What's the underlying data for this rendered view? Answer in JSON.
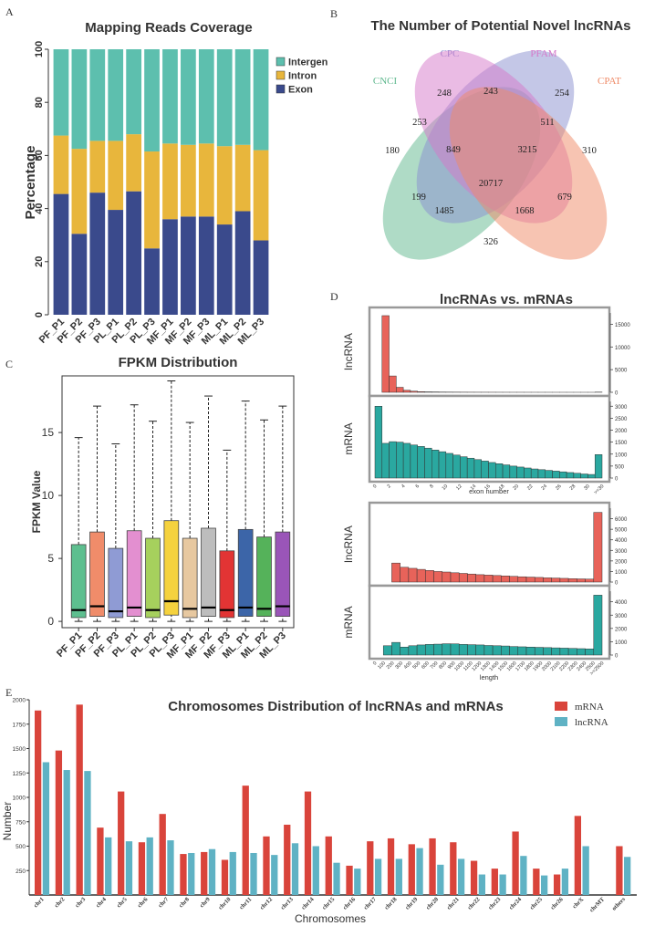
{
  "panel_labels": {
    "a": "A",
    "b": "B",
    "c": "C",
    "d": "D",
    "e": "E"
  },
  "chart_data": [
    {
      "id": "A",
      "type": "bar",
      "stacked": true,
      "title": "Mapping Reads Coverage",
      "ylabel": "Percentage",
      "xlabel": "",
      "ylim": [
        0,
        100
      ],
      "yticks": [
        0,
        20,
        40,
        60,
        80,
        100
      ],
      "categories": [
        "PF_P1",
        "PF_P2",
        "PF_P3",
        "PL_P1",
        "PL_P2",
        "PL_P3",
        "MF_P1",
        "MF_P2",
        "MF_P3",
        "ML_P1",
        "ML_P2",
        "ML_P3"
      ],
      "series": [
        {
          "name": "Exon",
          "color": "#3a4a8c",
          "values": [
            45.5,
            30.5,
            46,
            39.5,
            46.5,
            25,
            36,
            37,
            37,
            34,
            39,
            28
          ]
        },
        {
          "name": "Intron",
          "color": "#e8b63c",
          "values": [
            22,
            32,
            19.5,
            26,
            21.5,
            36.5,
            28.5,
            27,
            27.5,
            29.5,
            25,
            34
          ]
        },
        {
          "name": "Intergenic",
          "color": "#5dbfae",
          "values": [
            32.5,
            37.5,
            34.5,
            34.5,
            32,
            38.5,
            35.5,
            36,
            35.5,
            36.5,
            36,
            38
          ]
        }
      ],
      "legend": [
        "Intergenic",
        "Intron",
        "Exon"
      ],
      "legend_position": "right"
    },
    {
      "id": "B",
      "type": "venn",
      "title": "The Number of Potential Novel lncRNAs",
      "sets": [
        {
          "name": "CNCI",
          "color": "#5fb88e"
        },
        {
          "name": "CPC",
          "color": "#8a8fd0"
        },
        {
          "name": "PFAM",
          "color": "#d677c9"
        },
        {
          "name": "CPAT",
          "color": "#ef8a66"
        }
      ],
      "regions": [
        {
          "sets": [
            "CNCI"
          ],
          "value": 180
        },
        {
          "sets": [
            "CPC"
          ],
          "value": 248
        },
        {
          "sets": [
            "PFAM"
          ],
          "value": 254
        },
        {
          "sets": [
            "CPAT"
          ],
          "value": 310
        },
        {
          "sets": [
            "CNCI",
            "CPC"
          ],
          "value": 253
        },
        {
          "sets": [
            "CPC",
            "PFAM"
          ],
          "value": 243
        },
        {
          "sets": [
            "PFAM",
            "CPAT"
          ],
          "value": 511
        },
        {
          "sets": [
            "CNCI",
            "CPC",
            "PFAM"
          ],
          "value": 849
        },
        {
          "sets": [
            "CPC",
            "PFAM",
            "CPAT"
          ],
          "value": 3215
        },
        {
          "sets": [
            "CNCI",
            "CPC",
            "PFAM",
            "CPAT"
          ],
          "value": 20717
        },
        {
          "sets": [
            "CNCI",
            "PFAM"
          ],
          "value": 199
        },
        {
          "sets": [
            "CPC",
            "CPAT"
          ],
          "value": 679
        },
        {
          "sets": [
            "CNCI",
            "PFAM",
            "CPAT"
          ],
          "value": 1485
        },
        {
          "sets": [
            "CNCI",
            "CPC",
            "CPAT"
          ],
          "value": 1668
        },
        {
          "sets": [
            "CNCI",
            "CPAT"
          ],
          "value": 326
        }
      ]
    },
    {
      "id": "C",
      "type": "boxplot",
      "title": "FPKM Distribution",
      "ylabel": "FPKM Value",
      "ylim": [
        -0.5,
        19.5
      ],
      "yticks": [
        0,
        5,
        10,
        15
      ],
      "categories": [
        "PF_P1",
        "PF_P2",
        "PF_P3",
        "PL_P1",
        "PL_P2",
        "PL_P3",
        "MF_P1",
        "MF_P2",
        "MF_P3",
        "ML_P1",
        "ML_P2",
        "ML_P3"
      ],
      "boxes": [
        {
          "q1": 0.3,
          "median": 0.9,
          "q3": 6.1,
          "whisker_high": 14.6,
          "color": "#5dbf8f"
        },
        {
          "q1": 0.4,
          "median": 1.2,
          "q3": 7.1,
          "whisker_high": 17.1,
          "color": "#f08c6a"
        },
        {
          "q1": 0.3,
          "median": 0.8,
          "q3": 5.8,
          "whisker_high": 14.1,
          "color": "#8f9bd4"
        },
        {
          "q1": 0.4,
          "median": 1.1,
          "q3": 7.2,
          "whisker_high": 17.2,
          "color": "#e38fd0"
        },
        {
          "q1": 0.3,
          "median": 0.9,
          "q3": 6.6,
          "whisker_high": 15.9,
          "color": "#a6d05d"
        },
        {
          "q1": 0.5,
          "median": 1.6,
          "q3": 8.0,
          "whisker_high": 19.1,
          "color": "#f5d23e"
        },
        {
          "q1": 0.3,
          "median": 1.0,
          "q3": 6.6,
          "whisker_high": 15.8,
          "color": "#e7c8a0"
        },
        {
          "q1": 0.4,
          "median": 1.1,
          "q3": 7.4,
          "whisker_high": 17.9,
          "color": "#bdbdbd"
        },
        {
          "q1": 0.3,
          "median": 0.9,
          "q3": 5.6,
          "whisker_high": 13.6,
          "color": "#e23434"
        },
        {
          "q1": 0.4,
          "median": 1.1,
          "q3": 7.3,
          "whisker_high": 17.5,
          "color": "#3c65a8"
        },
        {
          "q1": 0.4,
          "median": 1.0,
          "q3": 6.7,
          "whisker_high": 16.0,
          "color": "#55b25a"
        },
        {
          "q1": 0.4,
          "median": 1.2,
          "q3": 7.1,
          "whisker_high": 17.1,
          "color": "#9a55b8"
        }
      ]
    },
    {
      "id": "D1",
      "type": "bar",
      "title": "lncRNAs vs. mRNAs",
      "xlabel": "exon number",
      "xticks": [
        "0",
        "2",
        "4",
        "6",
        "8",
        "10",
        "12",
        "14",
        "16",
        "18",
        "20",
        "22",
        "24",
        "26",
        "28",
        "30",
        ">=30"
      ],
      "series": [
        {
          "name": "lncRNA",
          "color": "#e8635a",
          "ylim": [
            0,
            17500
          ],
          "yticks": [
            0,
            5000,
            10000,
            15000
          ],
          "values": [
            0,
            16900,
            3600,
            1100,
            450,
            250,
            150,
            100,
            80,
            60,
            50,
            40,
            30,
            25,
            20,
            18,
            15,
            12,
            10,
            9,
            8,
            7,
            6,
            5,
            5,
            4,
            4,
            3,
            3,
            2,
            2,
            50
          ]
        },
        {
          "name": "mRNA",
          "color": "#2aa8a0",
          "ylim": [
            0,
            3200
          ],
          "yticks": [
            0,
            500,
            1000,
            1500,
            2000,
            2500,
            3000
          ],
          "values": [
            3000,
            1450,
            1520,
            1500,
            1450,
            1380,
            1320,
            1250,
            1170,
            1100,
            1030,
            960,
            890,
            830,
            770,
            710,
            650,
            600,
            550,
            500,
            460,
            420,
            380,
            350,
            320,
            290,
            260,
            230,
            200,
            170,
            150,
            980
          ]
        }
      ]
    },
    {
      "id": "D2",
      "type": "bar",
      "xlabel": "length",
      "xticks": [
        "0",
        "100",
        "200",
        "300",
        "400",
        "500",
        "600",
        "700",
        "800",
        "900",
        "1000",
        "1100",
        "1200",
        "1300",
        "1400",
        "1500",
        "1600",
        "1700",
        "1800",
        "1900",
        "2000",
        "2100",
        "2200",
        "2300",
        "2400",
        "2500",
        ">=2500"
      ],
      "series": [
        {
          "name": "lncRNA",
          "color": "#e8635a",
          "ylim": [
            0,
            7000
          ],
          "yticks": [
            0,
            1000,
            2000,
            3000,
            4000,
            5000,
            6000
          ],
          "values": [
            0,
            0,
            1800,
            1400,
            1300,
            1200,
            1100,
            1000,
            950,
            880,
            820,
            760,
            700,
            660,
            620,
            580,
            540,
            500,
            470,
            440,
            400,
            380,
            350,
            320,
            300,
            280,
            6600
          ]
        },
        {
          "name": "mRNA",
          "color": "#2aa8a0",
          "ylim": [
            0,
            4800
          ],
          "yticks": [
            0,
            1000,
            2000,
            3000,
            4000
          ],
          "values": [
            0,
            700,
            950,
            600,
            700,
            760,
            800,
            820,
            850,
            840,
            800,
            780,
            760,
            720,
            700,
            680,
            640,
            620,
            600,
            580,
            560,
            540,
            520,
            500,
            480,
            460,
            4500
          ]
        }
      ]
    },
    {
      "id": "E",
      "type": "bar",
      "title": "Chromosomes Distribution of lncRNAs and mRNAs",
      "xlabel": "Chromosomes",
      "ylabel": "Number",
      "ylim": [
        0,
        2000
      ],
      "yticks": [
        250,
        500,
        750,
        1000,
        1250,
        1500,
        1750,
        2000
      ],
      "categories": [
        "chr1",
        "chr2",
        "chr3",
        "chr4",
        "chr5",
        "chr6",
        "chr7",
        "chr8",
        "chr9",
        "chr10",
        "chr11",
        "chr12",
        "chr13",
        "chr14",
        "chr15",
        "chr16",
        "chr17",
        "chr18",
        "chr19",
        "chr20",
        "chr21",
        "chr22",
        "chr23",
        "chr24",
        "chr25",
        "chr26",
        "chrX",
        "chrMT",
        "others"
      ],
      "series": [
        {
          "name": "mRNA",
          "color": "#d9443b",
          "values": [
            1890,
            1480,
            1950,
            690,
            1060,
            540,
            830,
            420,
            440,
            360,
            1120,
            600,
            720,
            1060,
            600,
            300,
            550,
            580,
            520,
            580,
            540,
            350,
            270,
            650,
            270,
            210,
            810,
            0,
            500
          ]
        },
        {
          "name": "lncRNA",
          "color": "#5fb2c4",
          "values": [
            1360,
            1280,
            1270,
            590,
            550,
            590,
            560,
            430,
            470,
            440,
            430,
            410,
            530,
            500,
            330,
            270,
            370,
            370,
            480,
            310,
            370,
            210,
            210,
            400,
            200,
            270,
            500,
            0,
            390
          ]
        }
      ],
      "legend_position": "top-right"
    }
  ]
}
